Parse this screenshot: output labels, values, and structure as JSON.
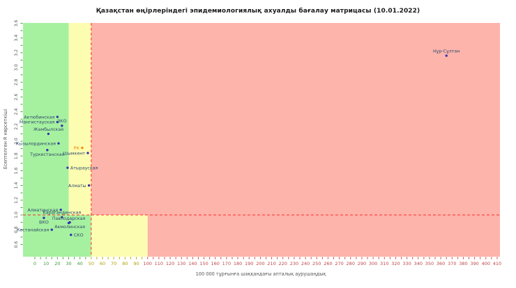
{
  "chart_data": {
    "type": "scatter",
    "title": "Қазақстан өңірлеріндегі эпидемиологиялық ахуалды бағалау матрицасы  (10.01.2022)",
    "xlabel": "100 000 тұрғынға шаққандағы апталық аурушаңдық",
    "ylabel": "Есептелген R көрсеткіші",
    "xlim": [
      0,
      410
    ],
    "ylim": [
      0.6,
      3.6
    ],
    "x_major_step": 10,
    "x_minor_step": 5,
    "y_major_step": 0.2,
    "y_minor_step": 0.1,
    "grid": false,
    "legend": "none",
    "thresholds": {
      "r_threshold_line": 1.0,
      "incidence_threshold_line": 50,
      "upper_zone_green_max": 30,
      "upper_zone_yellow_max": 50,
      "lower_zone_green_max": 50,
      "lower_zone_yellow_max": 100
    },
    "colors": {
      "green_zone": "#a6f1a0",
      "yellow_zone": "#fdfdb2",
      "red_zone": "#fdb4ab",
      "dashed_line": "#ff2d2d",
      "point": "#3434aa",
      "point_label": "#2e4a6b",
      "rk_accent": "#ee8800",
      "tick_green": "#3a9a3a",
      "tick_yellow": "#b0a000",
      "tick_red": "#c04545",
      "y_tick_label": "#556055"
    },
    "points": [
      {
        "name": "Нұр-Сұлтан",
        "x": 365,
        "y": 3.16,
        "label_pos": "above"
      },
      {
        "name": "Актюбинская",
        "x": 20,
        "y": 2.33,
        "label_pos": "left"
      },
      {
        "name": "ЗКО",
        "x": 24,
        "y": 2.21,
        "label_pos": "above"
      },
      {
        "name": "Мангистауская",
        "x": 20,
        "y": 2.26,
        "label_pos": "left"
      },
      {
        "name": "Жамбылская",
        "x": 12,
        "y": 2.1,
        "label_pos": "above"
      },
      {
        "name": "Кызылординская",
        "x": 21,
        "y": 1.97,
        "label_pos": "left"
      },
      {
        "name": "Туркестанская",
        "x": 11,
        "y": 1.88,
        "label_pos": "below"
      },
      {
        "name": "РК",
        "x": 42,
        "y": 1.91,
        "label_pos": "left",
        "accent": true
      },
      {
        "name": "Шымкент",
        "x": 47,
        "y": 1.84,
        "label_pos": "left"
      },
      {
        "name": "Атырауская",
        "x": 29,
        "y": 1.64,
        "label_pos": "right"
      },
      {
        "name": "Алматы",
        "x": 48,
        "y": 1.4,
        "label_pos": "left"
      },
      {
        "name": "Алматинская",
        "x": 23,
        "y": 1.07,
        "label_pos": "left"
      },
      {
        "name": "Карагандинская",
        "x": 24,
        "y": 0.97,
        "label_pos": "above"
      },
      {
        "name": "ВКО",
        "x": 8,
        "y": 0.96,
        "label_pos": "below"
      },
      {
        "name": "Павлодарская",
        "x": 30,
        "y": 0.89,
        "label_pos": "above"
      },
      {
        "name": "Акмолинская",
        "x": 31,
        "y": 0.9,
        "label_pos": "below"
      },
      {
        "name": "Костанайская",
        "x": 15,
        "y": 0.8,
        "label_pos": "left"
      },
      {
        "name": "СКО",
        "x": 32,
        "y": 0.73,
        "label_pos": "right"
      }
    ]
  }
}
